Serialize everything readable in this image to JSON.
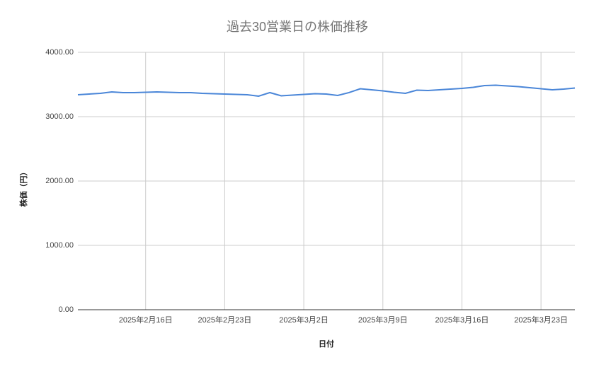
{
  "chart_data": {
    "type": "line",
    "title": "過去30営業日の株価推移",
    "x_label": "日付",
    "y_label": "株価（円）",
    "x": [
      "2025-02-10",
      "2025-02-11",
      "2025-02-12",
      "2025-02-13",
      "2025-02-14",
      "2025-02-15",
      "2025-02-16",
      "2025-02-17",
      "2025-02-18",
      "2025-02-19",
      "2025-02-20",
      "2025-02-21",
      "2025-02-22",
      "2025-02-23",
      "2025-02-24",
      "2025-02-25",
      "2025-02-26",
      "2025-02-27",
      "2025-02-28",
      "2025-03-01",
      "2025-03-02",
      "2025-03-03",
      "2025-03-04",
      "2025-03-05",
      "2025-03-06",
      "2025-03-07",
      "2025-03-08",
      "2025-03-09",
      "2025-03-10",
      "2025-03-11",
      "2025-03-12",
      "2025-03-13",
      "2025-03-14",
      "2025-03-15",
      "2025-03-16",
      "2025-03-17",
      "2025-03-18",
      "2025-03-19",
      "2025-03-20",
      "2025-03-21",
      "2025-03-22",
      "2025-03-23",
      "2025-03-24",
      "2025-03-25",
      "2025-03-26"
    ],
    "series": [
      {
        "name": "株価",
        "color": "#4a86d8",
        "values": [
          3341,
          3352,
          3363,
          3385,
          3374,
          3374,
          3379,
          3385,
          3379,
          3374,
          3374,
          3363,
          3357,
          3352,
          3346,
          3341,
          3319,
          3374,
          3324,
          3335,
          3346,
          3357,
          3352,
          3330,
          3374,
          3434,
          3418,
          3401,
          3379,
          3363,
          3412,
          3407,
          3418,
          3429,
          3440,
          3456,
          3484,
          3489,
          3478,
          3467,
          3451,
          3434,
          3418,
          3429,
          3445
        ]
      }
    ],
    "xlim": [
      "2025-02-10",
      "2025-03-26"
    ],
    "xticks": [
      {
        "value": "2025-02-16",
        "label": "2025年2月16日"
      },
      {
        "value": "2025-02-23",
        "label": "2025年2月23日"
      },
      {
        "value": "2025-03-02",
        "label": "2025年3月2日"
      },
      {
        "value": "2025-03-09",
        "label": "2025年3月9日"
      },
      {
        "value": "2025-03-16",
        "label": "2025年3月16日"
      },
      {
        "value": "2025-03-23",
        "label": "2025年3月23日"
      }
    ],
    "ylim": [
      0,
      4000
    ],
    "yticks": [
      {
        "value": 0,
        "label": "0.00"
      },
      {
        "value": 1000,
        "label": "1000.00"
      },
      {
        "value": 2000,
        "label": "2000.00"
      },
      {
        "value": 3000,
        "label": "3000.00"
      },
      {
        "value": 4000,
        "label": "4000.00"
      }
    ],
    "grid": true
  }
}
